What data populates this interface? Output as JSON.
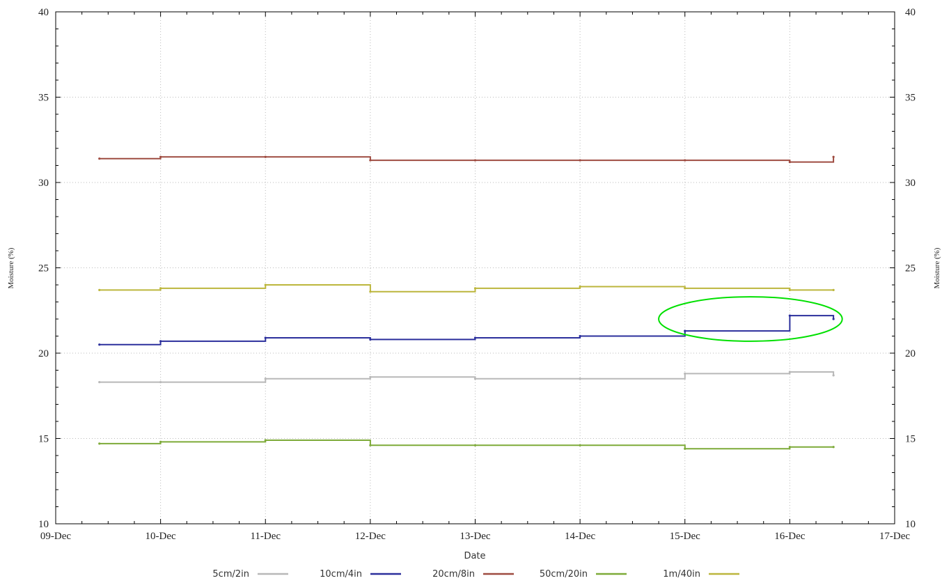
{
  "chart_data": {
    "type": "line",
    "title": "",
    "xlabel": "Date",
    "ylabel": "Moisture (%)",
    "ylim": [
      10,
      40
    ],
    "yticks": [
      10,
      15,
      20,
      25,
      30,
      35,
      40
    ],
    "xlim": [
      "09-Dec",
      "17-Dec"
    ],
    "x_tick_labels": [
      "09-Dec",
      "10-Dec",
      "11-Dec",
      "12-Dec",
      "13-Dec",
      "14-Dec",
      "15-Dec",
      "16-Dec",
      "17-Dec"
    ],
    "x": [
      "09-Dec 10:00",
      "10-Dec 00:00",
      "11-Dec 00:00",
      "12-Dec 00:00",
      "13-Dec 00:00",
      "14-Dec 00:00",
      "15-Dec 00:00",
      "16-Dec 00:00",
      "16-Dec 10:00"
    ],
    "grid": true,
    "legend_position": "bottom",
    "series": [
      {
        "name": "5cm/2in",
        "color": "#b8b8b8",
        "values": [
          18.3,
          18.3,
          18.5,
          18.6,
          18.5,
          18.5,
          18.8,
          18.9,
          18.7
        ]
      },
      {
        "name": "10cm/4in",
        "color": "#2b2f9c",
        "values": [
          20.5,
          20.7,
          20.9,
          20.8,
          20.9,
          21.0,
          21.3,
          22.2,
          22.0
        ]
      },
      {
        "name": "20cm/8in",
        "color": "#9e4b40",
        "values": [
          31.4,
          31.5,
          31.5,
          31.3,
          31.3,
          31.3,
          31.3,
          31.2,
          31.5
        ]
      },
      {
        "name": "50cm/20in",
        "color": "#7daa38",
        "values": [
          14.7,
          14.8,
          14.9,
          14.6,
          14.6,
          14.6,
          14.4,
          14.5,
          14.5
        ]
      },
      {
        "name": "1m/40in",
        "color": "#bcb63c",
        "values": [
          23.7,
          23.8,
          24.0,
          23.6,
          23.8,
          23.9,
          23.8,
          23.7,
          23.7
        ]
      }
    ],
    "annotations": [
      {
        "shape": "ellipse",
        "color": "#00e000",
        "x_range": [
          "14-Dec 18:00",
          "16-Dec 12:00"
        ],
        "y_range": [
          20.7,
          23.3
        ]
      }
    ]
  }
}
